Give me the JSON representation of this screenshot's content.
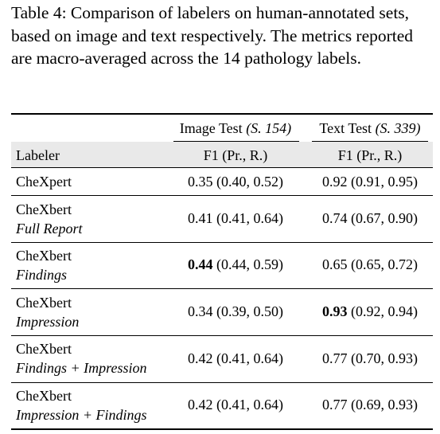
{
  "caption": "Table 4: Comparison of labelers on human-annotated sets, based on image and text respectively. The metrics reported are macro-averaged across the 14 pathology labels.",
  "header": {
    "image_test": "Image Test",
    "image_test_n": "(S. 154)",
    "text_test": "Text Test",
    "text_test_n": "(S. 339)",
    "labeler": "Labeler",
    "metric_image": "F1 (Pr., R.)",
    "metric_text": "F1 (Pr., R.)"
  },
  "rows": [
    {
      "name": "CheXpert",
      "variant": "",
      "img_f1": "0.35",
      "img_pr": "(0.40, 0.52)",
      "txt_f1": "0.92",
      "txt_pr": "(0.91, 0.95)"
    },
    {
      "name": "CheXbert",
      "variant": "Full Report",
      "img_f1": "0.41",
      "img_pr": "(0.41, 0.64)",
      "txt_f1": "0.74",
      "txt_pr": "(0.67, 0.90)"
    },
    {
      "name": "CheXbert",
      "variant": "Findings",
      "img_f1": "0.44",
      "img_pr": "(0.44, 0.59)",
      "txt_f1": "0.65",
      "txt_pr": "(0.65, 0.72)"
    },
    {
      "name": "CheXbert",
      "variant": "Impression",
      "img_f1": "0.34",
      "img_pr": "(0.39, 0.50)",
      "txt_f1": "0.93",
      "txt_pr": "(0.92, 0.94)"
    },
    {
      "name": "CheXbert",
      "variant": "Findings + Impression",
      "img_f1": "0.42",
      "img_pr": "(0.41, 0.64)",
      "txt_f1": "0.77",
      "txt_pr": "(0.70, 0.93)"
    },
    {
      "name": "CheXbert",
      "variant": "Impression + Findings",
      "img_f1": "0.42",
      "img_pr": "(0.41, 0.64)",
      "txt_f1": "0.77",
      "txt_pr": "(0.69, 0.93)"
    }
  ]
}
